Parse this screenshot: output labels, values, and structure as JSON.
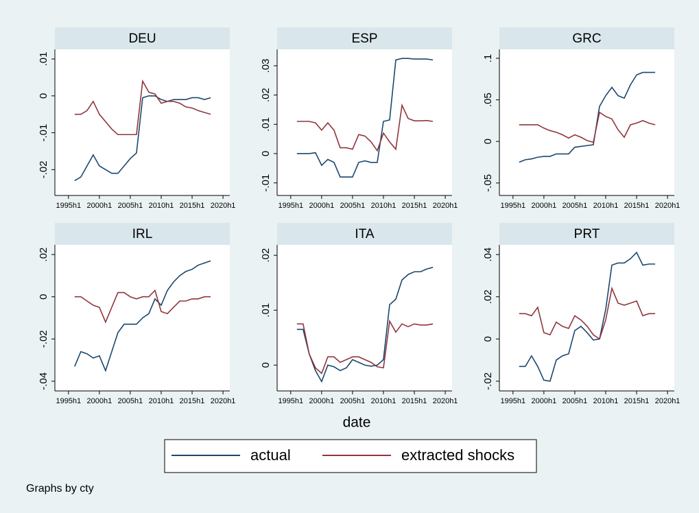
{
  "x_label": "date",
  "note": "Graphs by cty",
  "chart_data": [
    {
      "type": "line",
      "title": "DEU",
      "x": [
        1996,
        1997,
        1998,
        1999,
        2000,
        2001,
        2002,
        2003,
        2004,
        2005,
        2006,
        2007,
        2008,
        2009,
        2010,
        2011,
        2012,
        2013,
        2014,
        2015,
        2016,
        2017,
        2018
      ],
      "series": [
        {
          "name": "actual",
          "color": "#1a476f",
          "values": [
            -0.023,
            -0.022,
            -0.019,
            -0.016,
            -0.019,
            -0.02,
            -0.021,
            -0.021,
            -0.019,
            -0.017,
            -0.0155,
            -0.0005,
            0,
            0,
            -0.001,
            -0.0015,
            -0.001,
            -0.001,
            -0.001,
            -0.0005,
            -0.0005,
            -0.001,
            -0.0005
          ]
        },
        {
          "name": "extracted shocks",
          "color": "#90353b",
          "values": [
            -0.005,
            -0.005,
            -0.004,
            -0.0015,
            -0.005,
            -0.007,
            -0.009,
            -0.0105,
            -0.0105,
            -0.0105,
            -0.0105,
            0.004,
            0.001,
            0.0005,
            -0.002,
            -0.0015,
            -0.0015,
            -0.002,
            -0.003,
            -0.0033,
            -0.004,
            -0.0045,
            -0.005
          ]
        }
      ],
      "xlim": [
        1992.8,
        2021.1
      ],
      "xticks": [
        {
          "value": 1995,
          "label": "1995h1"
        },
        {
          "value": 2000,
          "label": "2000h1"
        },
        {
          "value": 2005,
          "label": "2005h1"
        },
        {
          "value": 2010,
          "label": "2010h1"
        },
        {
          "value": 2015,
          "label": "2015h1"
        },
        {
          "value": 2020,
          "label": "2020h1"
        }
      ],
      "ylim": [
        -0.027,
        0.0126
      ],
      "yticks": [
        {
          "value": -0.02,
          "label": "-.02"
        },
        {
          "value": -0.01,
          "label": "-.01"
        },
        0,
        {
          "value": 0.01,
          "label": ".01"
        }
      ]
    },
    {
      "type": "line",
      "title": "ESP",
      "x": [
        1996,
        1997,
        1998,
        1999,
        2000,
        2001,
        2002,
        2003,
        2004,
        2005,
        2006,
        2007,
        2008,
        2009,
        2010,
        2011,
        2012,
        2013,
        2014,
        2015,
        2016,
        2017,
        2018
      ],
      "series": [
        {
          "name": "actual",
          "color": "#1a476f",
          "values": [
            0,
            0,
            0,
            0.0003,
            -0.004,
            -0.002,
            -0.003,
            -0.008,
            -0.008,
            -0.008,
            -0.003,
            -0.0025,
            -0.003,
            -0.003,
            0.011,
            0.0115,
            0.032,
            0.0325,
            0.0325,
            0.0323,
            0.0323,
            0.0323,
            0.032
          ]
        },
        {
          "name": "extracted shocks",
          "color": "#90353b",
          "values": [
            0.011,
            0.011,
            0.011,
            0.0105,
            0.008,
            0.0105,
            0.008,
            0.002,
            0.002,
            0.0015,
            0.0065,
            0.006,
            0.004,
            0.001,
            0.007,
            0.004,
            0.0015,
            0.0165,
            0.012,
            0.0112,
            0.0112,
            0.0113,
            0.011
          ]
        }
      ],
      "xlim": [
        1992.8,
        2021.1
      ],
      "xticks": [
        {
          "value": 1995,
          "label": "1995h1"
        },
        {
          "value": 2000,
          "label": "2000h1"
        },
        {
          "value": 2005,
          "label": "2005h1"
        },
        {
          "value": 2010,
          "label": "2010h1"
        },
        {
          "value": 2015,
          "label": "2015h1"
        },
        {
          "value": 2020,
          "label": "2020h1"
        }
      ],
      "ylim": [
        -0.0143,
        0.0356
      ],
      "yticks": [
        {
          "value": -0.01,
          "label": "-.01"
        },
        0,
        {
          "value": 0.01,
          "label": ".01"
        },
        {
          "value": 0.02,
          "label": ".02"
        },
        {
          "value": 0.03,
          "label": ".03"
        }
      ]
    },
    {
      "type": "line",
      "title": "GRC",
      "x": [
        1996,
        1997,
        1998,
        1999,
        2000,
        2001,
        2002,
        2003,
        2004,
        2005,
        2006,
        2007,
        2008,
        2009,
        2010,
        2011,
        2012,
        2013,
        2014,
        2015,
        2016,
        2017,
        2018
      ],
      "series": [
        {
          "name": "actual",
          "color": "#1a476f",
          "values": [
            -0.025,
            -0.022,
            -0.021,
            -0.019,
            -0.018,
            -0.018,
            -0.015,
            -0.015,
            -0.015,
            -0.007,
            -0.006,
            -0.005,
            -0.004,
            0.042,
            0.055,
            0.065,
            0.055,
            0.052,
            0.068,
            0.08,
            0.083,
            0.083,
            0.083
          ]
        },
        {
          "name": "extracted shocks",
          "color": "#90353b",
          "values": [
            0.02,
            0.02,
            0.02,
            0.02,
            0.016,
            0.013,
            0.011,
            0.008,
            0.004,
            0.008,
            0.005,
            0.001,
            -0.001,
            0.035,
            0.03,
            0.027,
            0.014,
            0.005,
            0.02,
            0.022,
            0.025,
            0.022,
            0.02
          ]
        }
      ],
      "xlim": [
        1992.8,
        2021.1
      ],
      "xticks": [
        {
          "value": 1995,
          "label": "1995h1"
        },
        {
          "value": 2000,
          "label": "2000h1"
        },
        {
          "value": 2005,
          "label": "2005h1"
        },
        {
          "value": 2010,
          "label": "2010h1"
        },
        {
          "value": 2015,
          "label": "2015h1"
        },
        {
          "value": 2020,
          "label": "2020h1"
        }
      ],
      "ylim": [
        -0.065,
        0.1107
      ],
      "yticks": [
        {
          "value": -0.05,
          "label": "-.05"
        },
        0,
        {
          "value": 0.05,
          "label": ".05"
        },
        {
          "value": 0.1,
          "label": ".1"
        }
      ]
    },
    {
      "type": "line",
      "title": "IRL",
      "x": [
        1996,
        1997,
        1998,
        1999,
        2000,
        2001,
        2002,
        2003,
        2004,
        2005,
        2006,
        2007,
        2008,
        2009,
        2010,
        2011,
        2012,
        2013,
        2014,
        2015,
        2016,
        2017,
        2018
      ],
      "series": [
        {
          "name": "actual",
          "color": "#1a476f",
          "values": [
            -0.033,
            -0.026,
            -0.027,
            -0.029,
            -0.028,
            -0.035,
            -0.026,
            -0.017,
            -0.013,
            -0.013,
            -0.013,
            -0.01,
            -0.008,
            -0.001,
            -0.004,
            0.003,
            0.007,
            0.01,
            0.012,
            0.013,
            0.015,
            0.016,
            0.017
          ]
        },
        {
          "name": "extracted shocks",
          "color": "#90353b",
          "values": [
            0,
            0,
            -0.002,
            -0.004,
            -0.005,
            -0.012,
            -0.005,
            0.002,
            0.002,
            0,
            -0.001,
            0,
            0,
            0.003,
            -0.007,
            -0.008,
            -0.005,
            -0.002,
            -0.002,
            -0.001,
            -0.001,
            0,
            0
          ]
        }
      ],
      "xlim": [
        1992.8,
        2021.1
      ],
      "xticks": [
        {
          "value": 1995,
          "label": "1995h1"
        },
        {
          "value": 2000,
          "label": "2000h1"
        },
        {
          "value": 2005,
          "label": "2005h1"
        },
        {
          "value": 2010,
          "label": "2010h1"
        },
        {
          "value": 2015,
          "label": "2015h1"
        },
        {
          "value": 2020,
          "label": "2020h1"
        }
      ],
      "ylim": [
        -0.0446,
        0.0246
      ],
      "yticks": [
        {
          "value": -0.04,
          "label": "-.04"
        },
        {
          "value": -0.02,
          "label": "-.02"
        },
        0,
        {
          "value": 0.02,
          "label": ".02"
        }
      ]
    },
    {
      "type": "line",
      "title": "ITA",
      "x": [
        1996,
        1997,
        1998,
        1999,
        2000,
        2001,
        2002,
        2003,
        2004,
        2005,
        2006,
        2007,
        2008,
        2009,
        2010,
        2011,
        2012,
        2013,
        2014,
        2015,
        2016,
        2017,
        2018
      ],
      "series": [
        {
          "name": "actual",
          "color": "#1a476f",
          "values": [
            0.0065,
            0.0065,
            0.002,
            -0.001,
            -0.003,
            0,
            -0.0003,
            -0.001,
            -0.0005,
            0.001,
            0.0005,
            0,
            -0.0002,
            0,
            0.001,
            0.011,
            0.012,
            0.0155,
            0.0165,
            0.017,
            0.017,
            0.0175,
            0.0178
          ]
        },
        {
          "name": "extracted shocks",
          "color": "#90353b",
          "values": [
            0.0075,
            0.0075,
            0.002,
            -0.0005,
            -0.0015,
            0.0015,
            0.0015,
            0.0005,
            0.001,
            0.0015,
            0.0015,
            0.001,
            0.0005,
            -0.0003,
            -0.0005,
            0.008,
            0.006,
            0.0075,
            0.007,
            0.0075,
            0.0073,
            0.0073,
            0.0075
          ]
        }
      ],
      "xlim": [
        1992.8,
        2021.1
      ],
      "xticks": [
        {
          "value": 1995,
          "label": "1995h1"
        },
        {
          "value": 2000,
          "label": "2000h1"
        },
        {
          "value": 2005,
          "label": "2005h1"
        },
        {
          "value": 2010,
          "label": "2010h1"
        },
        {
          "value": 2015,
          "label": "2015h1"
        },
        {
          "value": 2020,
          "label": "2020h1"
        }
      ],
      "ylim": [
        -0.0047,
        0.0219
      ],
      "yticks": [
        0,
        {
          "value": 0.01,
          "label": ".01"
        },
        {
          "value": 0.02,
          "label": ".02"
        }
      ]
    },
    {
      "type": "line",
      "title": "PRT",
      "x": [
        1996,
        1997,
        1998,
        1999,
        2000,
        2001,
        2002,
        2003,
        2004,
        2005,
        2006,
        2007,
        2008,
        2009,
        2010,
        2011,
        2012,
        2013,
        2014,
        2015,
        2016,
        2017,
        2018
      ],
      "series": [
        {
          "name": "actual",
          "color": "#1a476f",
          "values": [
            -0.013,
            -0.013,
            -0.008,
            -0.013,
            -0.0195,
            -0.02,
            -0.01,
            -0.008,
            -0.007,
            0.004,
            0.006,
            0.003,
            -0.0005,
            0,
            0.014,
            0.035,
            0.036,
            0.036,
            0.038,
            0.041,
            0.035,
            0.0355,
            0.0355
          ]
        },
        {
          "name": "extracted shocks",
          "color": "#90353b",
          "values": [
            0.012,
            0.012,
            0.011,
            0.015,
            0.003,
            0.002,
            0.008,
            0.006,
            0.005,
            0.011,
            0.009,
            0.006,
            0.002,
            0,
            0.009,
            0.024,
            0.017,
            0.016,
            0.017,
            0.018,
            0.011,
            0.012,
            0.012
          ]
        }
      ],
      "xlim": [
        1992.8,
        2021.1
      ],
      "xticks": [
        {
          "value": 1995,
          "label": "1995h1"
        },
        {
          "value": 2000,
          "label": "2000h1"
        },
        {
          "value": 2005,
          "label": "2005h1"
        },
        {
          "value": 2010,
          "label": "2010h1"
        },
        {
          "value": 2015,
          "label": "2015h1"
        },
        {
          "value": 2020,
          "label": "2020h1"
        }
      ],
      "ylim": [
        -0.0246,
        0.0446
      ],
      "yticks": [
        {
          "value": -0.02,
          "label": "-.02"
        },
        0,
        {
          "value": 0.02,
          "label": ".02"
        },
        {
          "value": 0.04,
          "label": ".04"
        }
      ]
    }
  ]
}
